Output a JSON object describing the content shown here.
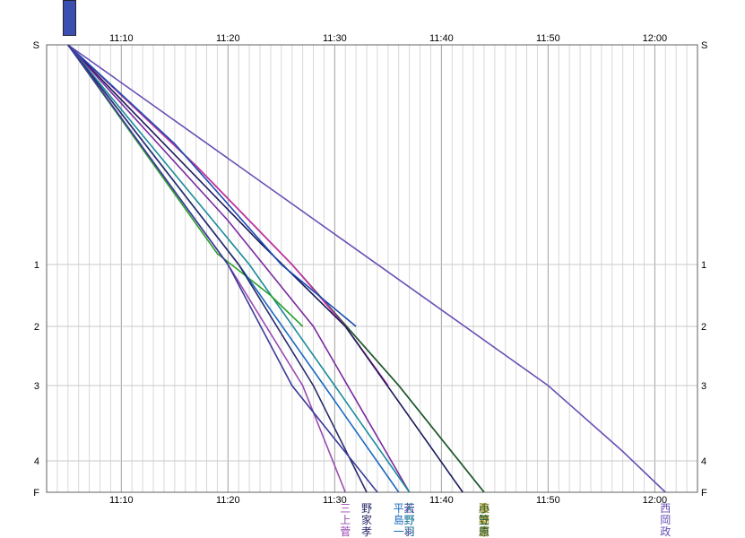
{
  "legend_badge": {
    "lines": [
      "",
      "",
      ""
    ],
    "color": "#3a4fb0"
  },
  "chart_data": {
    "type": "line",
    "title": "",
    "xlabel": "",
    "ylabel": "",
    "x_unit": "time (HH:MM)",
    "xlim": [
      "11:03",
      "12:04"
    ],
    "xticks": [
      "11:10",
      "11:20",
      "11:30",
      "11:40",
      "11:50",
      "12:00"
    ],
    "y_stations": [
      {
        "name": "S",
        "km": 0
      },
      {
        "name": "1",
        "km": 1
      },
      {
        "name": "2",
        "km": 1.3
      },
      {
        "name": "3",
        "km": 1.6
      },
      {
        "name": "4",
        "km": 2.0
      },
      {
        "name": "F",
        "km": 2.15
      }
    ],
    "grid": true,
    "series": [
      {
        "color": "#6a4fb5",
        "name_chars": [
          "西",
          "岡",
          "政"
        ],
        "points": [
          [
            "11:05",
            0
          ],
          [
            "11:50",
            1.6
          ],
          [
            "11:57",
            1.95
          ],
          [
            "12:01",
            2.15
          ]
        ]
      },
      {
        "color": "#b89a1a",
        "name_chars": [
          "藤",
          "朝",
          "侑"
        ],
        "points": [
          [
            "11:05",
            0
          ],
          [
            "11:17",
            0.55
          ],
          [
            "11:26",
            1.0
          ],
          [
            "11:36",
            1.6
          ],
          [
            "11:44",
            2.15
          ]
        ]
      },
      {
        "color": "#7a7a20",
        "name_chars": [
          "渡",
          "野",
          "志"
        ],
        "points": [
          [
            "11:05",
            0
          ],
          [
            "11:17",
            0.55
          ],
          [
            "11:26",
            1.0
          ],
          [
            "11:36",
            1.6
          ],
          [
            "11:44",
            2.15
          ]
        ]
      },
      {
        "color": "#1a5a3a",
        "name_chars": [
          "小",
          "笠",
          "原"
        ],
        "points": [
          [
            "11:05",
            0
          ],
          [
            "11:17",
            0.55
          ],
          [
            "11:26",
            1.0
          ],
          [
            "11:36",
            1.6
          ],
          [
            "11:44",
            2.15
          ]
        ]
      },
      {
        "color": "#d030b0",
        "name_chars": [
          "",
          "",
          ""
        ],
        "points": [
          [
            "11:05",
            0
          ],
          [
            "11:17",
            0.55
          ],
          [
            "11:26",
            1.0
          ],
          [
            "11:31",
            1.3
          ],
          [
            "11:35",
            1.6
          ]
        ]
      },
      {
        "color": "#1a1a5a",
        "name_chars": [
          "",
          "",
          ""
        ],
        "points": [
          [
            "11:05",
            0
          ],
          [
            "11:23",
            0.9
          ],
          [
            "11:31",
            1.3
          ],
          [
            "11:42",
            2.15
          ]
        ]
      },
      {
        "color": "#1a4ab0",
        "name_chars": [
          "",
          "",
          ""
        ],
        "points": [
          [
            "11:05",
            0
          ],
          [
            "11:15",
            0.45
          ],
          [
            "11:25",
            1.0
          ],
          [
            "11:32",
            1.3
          ]
        ]
      },
      {
        "color": "#7a2aa0",
        "name_chars": [
          "若",
          "野",
          "羽"
        ],
        "points": [
          [
            "11:05",
            0
          ],
          [
            "11:20",
            0.8
          ],
          [
            "11:28",
            1.3
          ],
          [
            "11:37",
            2.15
          ]
        ]
      },
      {
        "color": "#1a8a9a",
        "name_chars": [
          "天",
          "野",
          "司"
        ],
        "points": [
          [
            "11:05",
            0
          ],
          [
            "11:22",
            1.0
          ],
          [
            "11:30",
            1.6
          ],
          [
            "11:37",
            2.15
          ]
        ]
      },
      {
        "color": "#2aa02a",
        "name_chars": [
          "",
          "",
          ""
        ],
        "points": [
          [
            "11:05",
            0
          ],
          [
            "11:19",
            0.95
          ],
          [
            "11:24",
            1.15
          ],
          [
            "11:27",
            1.3
          ]
        ]
      },
      {
        "color": "#1a6ac0",
        "name_chars": [
          "平",
          "島",
          "一"
        ],
        "points": [
          [
            "11:05",
            0
          ],
          [
            "11:21",
            1.0
          ],
          [
            "11:29",
            1.6
          ],
          [
            "11:36",
            2.15
          ]
        ]
      },
      {
        "color": "#2a2a6a",
        "name_chars": [
          "野",
          "家",
          "孝"
        ],
        "points": [
          [
            "11:05",
            0
          ],
          [
            "11:21",
            1.0
          ],
          [
            "11:28",
            1.6
          ],
          [
            "11:33",
            2.15
          ]
        ]
      },
      {
        "color": "#9a4ab0",
        "name_chars": [
          "三",
          "上",
          "菅"
        ],
        "points": [
          [
            "11:05",
            0
          ],
          [
            "11:20",
            1.0
          ],
          [
            "11:27",
            1.6
          ],
          [
            "11:31",
            2.15
          ]
        ]
      },
      {
        "color": "#3a3a9a",
        "name_chars": [
          "",
          "",
          ""
        ],
        "points": [
          [
            "11:05",
            0
          ],
          [
            "11:20",
            1.0
          ],
          [
            "11:26",
            1.6
          ],
          [
            "11:34",
            2.15
          ]
        ]
      }
    ]
  }
}
